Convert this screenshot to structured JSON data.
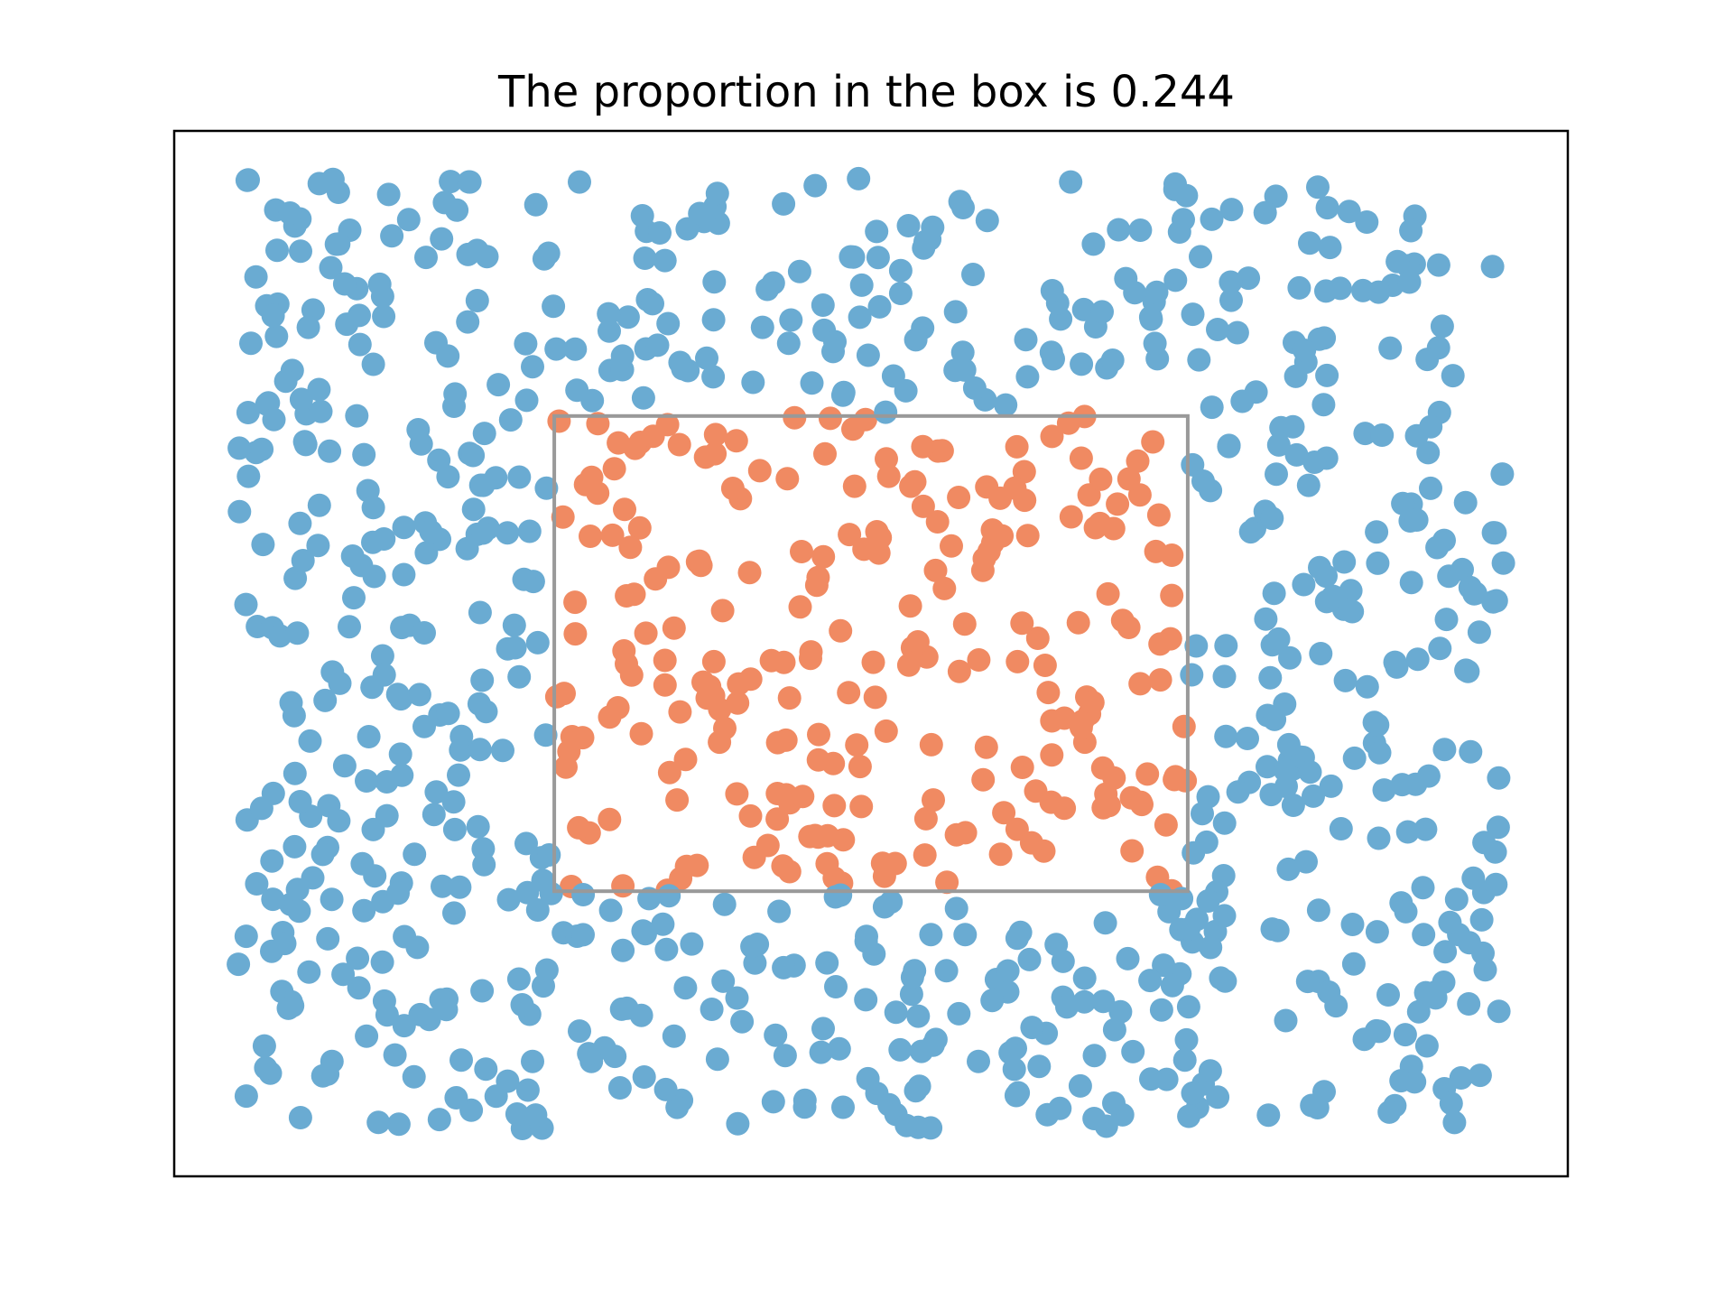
{
  "chart_data": {
    "type": "scatter",
    "title": "The proportion in the box is 0.244",
    "xlabel": "",
    "ylabel": "",
    "xlim": [
      -0.05,
      1.05
    ],
    "ylim": [
      -0.05,
      1.05
    ],
    "grid": false,
    "box": {
      "x": [
        0.25,
        0.75
      ],
      "y": [
        0.25,
        0.75
      ]
    },
    "n_points": 1000,
    "proportion_in_box": 0.244,
    "random_seed": 7,
    "colors": {
      "outside": "#6aabd2",
      "inside": "#f08a62",
      "box": "#999999",
      "frame": "#000000"
    }
  }
}
